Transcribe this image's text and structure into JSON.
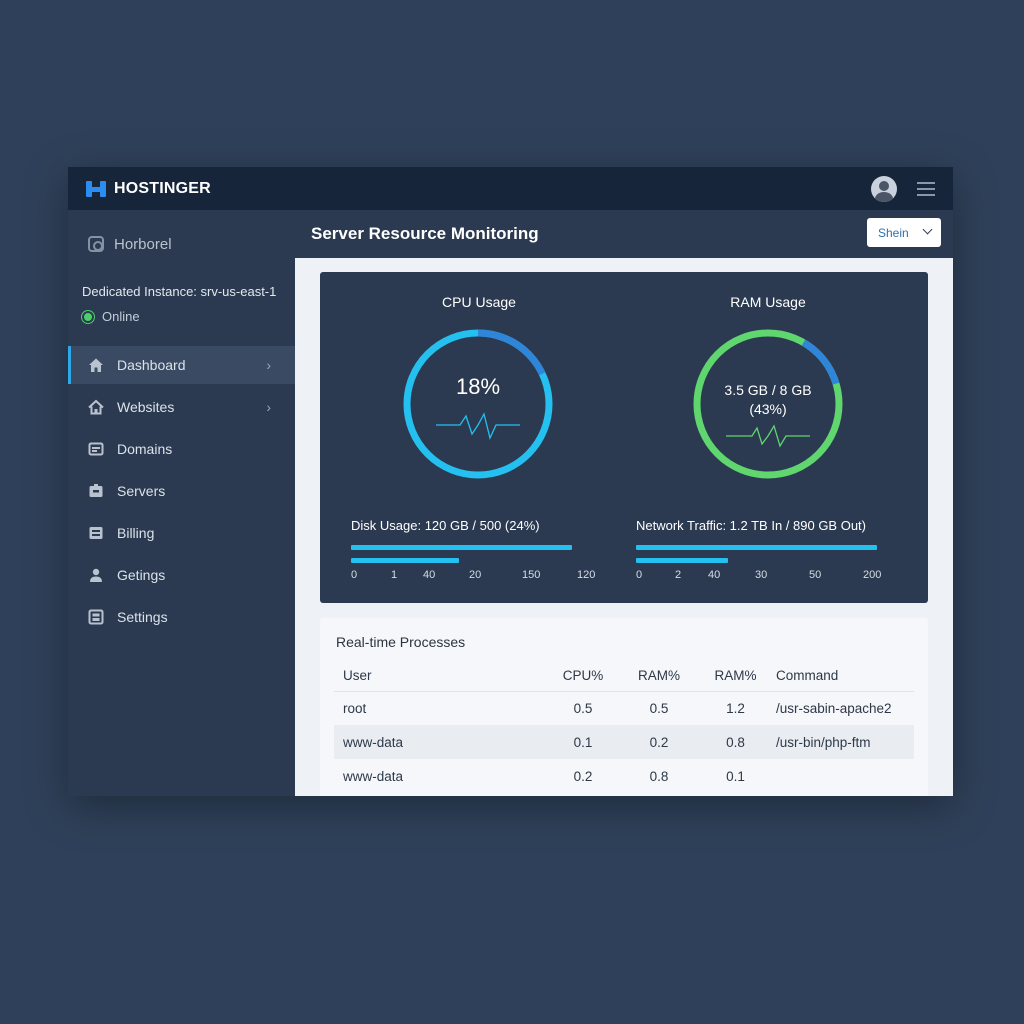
{
  "app": {
    "brand": "HOSTINGER",
    "colors": {
      "accent": "#2ea8e6",
      "cpu_ring": "#24c0f0",
      "ram_ring": "#5fd66e",
      "online": "#4ccf6a"
    }
  },
  "sidebar": {
    "brand_label": "Horborel",
    "instance_label": "Dedicated Instance: srv-us-east-1",
    "status": "Online",
    "items": [
      {
        "label": "Dashboard",
        "icon": "home-icon",
        "active": true,
        "chevron": true
      },
      {
        "label": "Websites",
        "icon": "house-icon",
        "active": false,
        "chevron": true
      },
      {
        "label": "Domains",
        "icon": "domain-icon",
        "active": false,
        "chevron": false
      },
      {
        "label": "Servers",
        "icon": "server-icon",
        "active": false,
        "chevron": false
      },
      {
        "label": "Billing",
        "icon": "billing-icon",
        "active": false,
        "chevron": false
      },
      {
        "label": "Getings",
        "icon": "user-icon",
        "active": false,
        "chevron": false
      },
      {
        "label": "Settings",
        "icon": "settings-icon",
        "active": false,
        "chevron": false
      }
    ]
  },
  "header": {
    "title": "Server Resource Monitoring",
    "select_value": "Shein"
  },
  "metrics": {
    "cpu": {
      "title": "CPU Usage",
      "value": "18%",
      "fraction": 0.18
    },
    "ram": {
      "title": "RAM Usage",
      "value_line1": "3.5 GB / 8 GB",
      "value_line2": "(43%)",
      "fraction": 0.43
    },
    "disk": {
      "label": "Disk Usage: 120 GB / 500 (24%)",
      "ticks": [
        "0",
        "1",
        "40",
        "20",
        "150",
        "120"
      ]
    },
    "network": {
      "label": "Network Traffic: 1.2 TB In / 890 GB Out)",
      "ticks": [
        "0",
        "2",
        "40",
        "30",
        "50",
        "200"
      ]
    }
  },
  "processes": {
    "title": "Real-time Processes",
    "columns": [
      "User",
      "CPU%",
      "RAM%",
      "RAM%",
      "Command"
    ],
    "rows": [
      [
        "root",
        "0.5",
        "0.5",
        "1.2",
        "/usr-sabin-apache2"
      ],
      [
        "www-data",
        "0.1",
        "0.2",
        "0.8",
        "/usr-bin/php-ftm"
      ],
      [
        "www-data",
        "0.2",
        "0.8",
        "0.1",
        ""
      ]
    ]
  }
}
